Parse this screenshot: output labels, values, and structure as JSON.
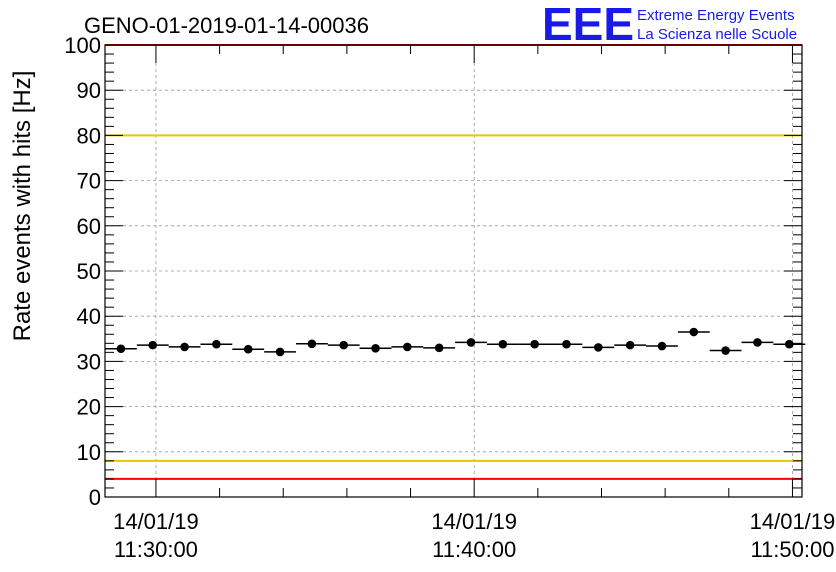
{
  "colors": {
    "threshold_red": "#ff0000",
    "threshold_yellow": "#e8c800",
    "logo_blue": "#1a1ae6",
    "marker": "#000000",
    "grid": "#999999"
  },
  "logo": {
    "letters": "EEE",
    "line1": "Extreme Energy Events",
    "line2": "La Scienza nelle Scuole"
  },
  "chart_data": {
    "type": "scatter",
    "title": "GENO-01-2019-01-14-00036",
    "ylabel": "Rate events with hits [Hz]",
    "xlabel": "",
    "ylim": [
      0,
      100
    ],
    "y_ticks": [
      0,
      10,
      20,
      30,
      40,
      50,
      60,
      70,
      80,
      90,
      100
    ],
    "grid": true,
    "x_range_minutes": [
      -1.6,
      20.3
    ],
    "x_major_ticks": [
      {
        "minute": 0,
        "date": "14/01/19",
        "time": "11:30:00"
      },
      {
        "minute": 10,
        "date": "14/01/19",
        "time": "11:40:00"
      },
      {
        "minute": 20,
        "date": "14/01/19",
        "time": "11:50:00"
      }
    ],
    "x_minor_ticks": [
      2,
      4,
      6,
      8,
      12,
      14,
      16,
      18
    ],
    "bin_width_minutes": 1,
    "threshold_lines": [
      {
        "name": "upper-red-limit",
        "value": 100,
        "color": "#ff0000"
      },
      {
        "name": "upper-yellow-limit",
        "value": 80,
        "color": "#e8c800"
      },
      {
        "name": "lower-yellow-limit",
        "value": 8,
        "color": "#e8c800"
      },
      {
        "name": "lower-red-limit",
        "value": 4,
        "color": "#ff0000"
      }
    ],
    "series": [
      {
        "name": "rate",
        "x": [
          -1.1,
          -0.1,
          0.9,
          1.9,
          2.9,
          3.9,
          4.9,
          5.9,
          6.9,
          7.9,
          8.9,
          9.9,
          10.9,
          11.9,
          12.9,
          13.9,
          14.9,
          15.9,
          16.9,
          17.9,
          18.9,
          19.9
        ],
        "y": [
          32.8,
          33.6,
          33.2,
          33.8,
          32.7,
          32.1,
          33.9,
          33.6,
          32.9,
          33.2,
          33.0,
          34.2,
          33.8,
          33.8,
          33.8,
          33.1,
          33.6,
          33.4,
          36.5,
          32.4,
          34.2,
          33.8
        ]
      }
    ]
  }
}
